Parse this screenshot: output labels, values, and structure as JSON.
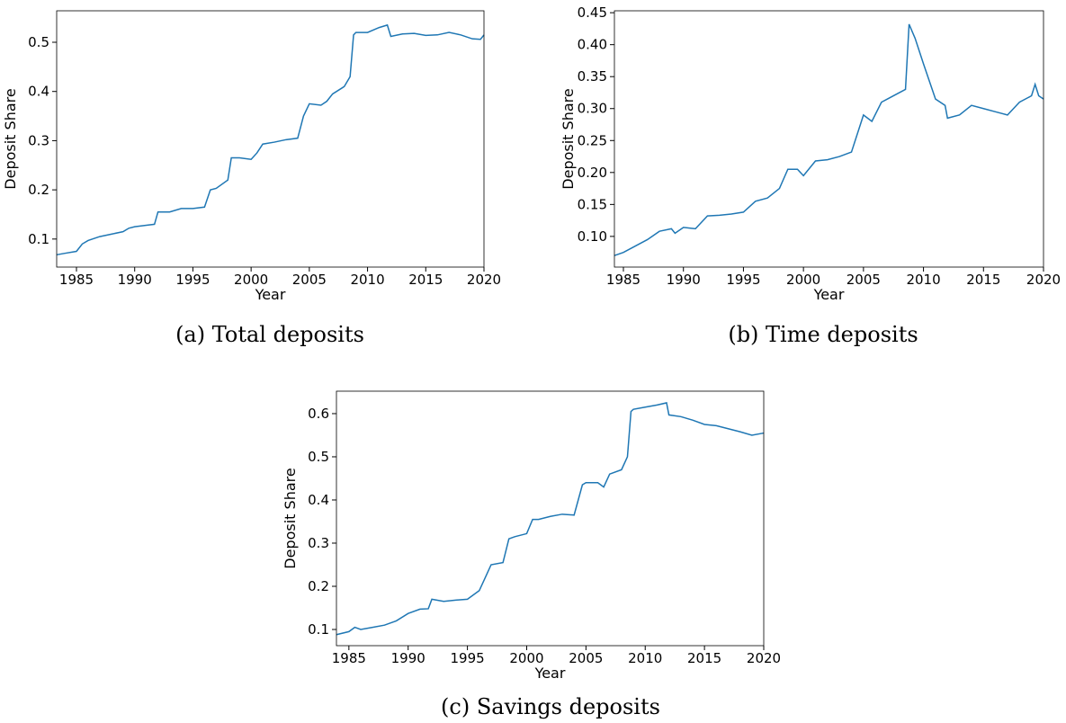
{
  "chart_data": [
    {
      "type": "line",
      "caption": "(a) Total deposits",
      "xlabel": "Year",
      "ylabel": "Deposit Share",
      "color": "#1f77b4",
      "xlim": [
        1983.3,
        2020
      ],
      "ylim": [
        0.043,
        0.564
      ],
      "xticks": [
        1985,
        1990,
        1995,
        2000,
        2005,
        2010,
        2015,
        2020
      ],
      "yticks": [
        0.1,
        0.2,
        0.3,
        0.4,
        0.5
      ],
      "x": [
        1983.3,
        1984,
        1985,
        1985.5,
        1986,
        1987,
        1988,
        1989,
        1989.5,
        1990,
        1991,
        1991.7,
        1992,
        1993,
        1994,
        1995,
        1996,
        1996.5,
        1997,
        1998,
        1998.3,
        1999,
        2000,
        2000.5,
        2001,
        2002,
        2003,
        2004,
        2004.5,
        2005,
        2006,
        2006.5,
        2007,
        2008,
        2008.5,
        2008.8,
        2009,
        2010,
        2011,
        2011.7,
        2012,
        2013,
        2014,
        2015,
        2016,
        2017,
        2018,
        2019,
        2019.7,
        2020
      ],
      "values": [
        0.068,
        0.071,
        0.075,
        0.09,
        0.097,
        0.105,
        0.11,
        0.115,
        0.122,
        0.125,
        0.128,
        0.13,
        0.155,
        0.155,
        0.162,
        0.162,
        0.165,
        0.2,
        0.203,
        0.22,
        0.265,
        0.265,
        0.262,
        0.275,
        0.293,
        0.297,
        0.302,
        0.305,
        0.35,
        0.375,
        0.372,
        0.38,
        0.395,
        0.41,
        0.43,
        0.515,
        0.52,
        0.52,
        0.53,
        0.535,
        0.512,
        0.517,
        0.518,
        0.514,
        0.515,
        0.52,
        0.515,
        0.507,
        0.506,
        0.515
      ]
    },
    {
      "type": "line",
      "caption": "(b) Time deposits",
      "xlabel": "Year",
      "ylabel": "Deposit Share",
      "color": "#1f77b4",
      "xlim": [
        1984.25,
        2020
      ],
      "ylim": [
        0.052,
        0.453
      ],
      "xticks": [
        1985,
        1990,
        1995,
        2000,
        2005,
        2010,
        2015,
        2020
      ],
      "yticks": [
        {
          "value": 0.1,
          "label": "0.10"
        },
        0.15,
        {
          "value": 0.2,
          "label": "0.20"
        },
        0.25,
        {
          "value": 0.3,
          "label": "0.30"
        },
        0.35,
        {
          "value": 0.4,
          "label": "0.40"
        },
        0.45
      ],
      "x": [
        1984.25,
        1985,
        1986,
        1987,
        1988,
        1989,
        1989.3,
        1990,
        1991,
        1992,
        1993,
        1994,
        1995,
        1996,
        1997,
        1998,
        1998.7,
        1999.5,
        2000,
        2001,
        2002,
        2003,
        2004,
        2005,
        2005.7,
        2006.5,
        2007,
        2008,
        2008.5,
        2008.8,
        2009.3,
        2010,
        2011,
        2011.8,
        2012,
        2013,
        2014,
        2015,
        2016,
        2017,
        2018,
        2019,
        2019.3,
        2019.6,
        2020
      ],
      "values": [
        0.07,
        0.075,
        0.085,
        0.095,
        0.108,
        0.112,
        0.105,
        0.114,
        0.112,
        0.132,
        0.133,
        0.135,
        0.138,
        0.155,
        0.16,
        0.175,
        0.205,
        0.205,
        0.195,
        0.218,
        0.22,
        0.225,
        0.232,
        0.29,
        0.28,
        0.31,
        0.315,
        0.325,
        0.33,
        0.432,
        0.41,
        0.37,
        0.315,
        0.305,
        0.285,
        0.29,
        0.305,
        0.3,
        0.295,
        0.29,
        0.31,
        0.32,
        0.338,
        0.32,
        0.315
      ]
    },
    {
      "type": "line",
      "caption": "(c) Savings deposits",
      "xlabel": "Year",
      "ylabel": "Deposit Share",
      "color": "#1f77b4",
      "xlim": [
        1983.95,
        2020
      ],
      "ylim": [
        0.0625,
        0.652
      ],
      "xticks": [
        1985,
        1990,
        1995,
        2000,
        2005,
        2010,
        2015,
        2020
      ],
      "yticks": [
        0.1,
        0.2,
        0.3,
        0.4,
        0.5,
        0.6
      ],
      "x": [
        1983.95,
        1985,
        1985.5,
        1986,
        1987,
        1988,
        1989,
        1990,
        1991,
        1991.7,
        1992,
        1993,
        1994,
        1995,
        1996,
        1996.5,
        1997,
        1998,
        1998.5,
        1999,
        2000,
        2000.5,
        2001,
        2002,
        2003,
        2004,
        2004.7,
        2005,
        2006,
        2006.5,
        2007,
        2008,
        2008.5,
        2008.8,
        2009,
        2010,
        2011,
        2011.8,
        2012,
        2013,
        2014,
        2015,
        2016,
        2017,
        2018,
        2019,
        2020
      ],
      "values": [
        0.088,
        0.095,
        0.105,
        0.1,
        0.105,
        0.11,
        0.12,
        0.137,
        0.147,
        0.148,
        0.17,
        0.165,
        0.168,
        0.17,
        0.19,
        0.22,
        0.25,
        0.255,
        0.31,
        0.315,
        0.322,
        0.355,
        0.355,
        0.362,
        0.367,
        0.365,
        0.435,
        0.44,
        0.44,
        0.43,
        0.46,
        0.47,
        0.5,
        0.605,
        0.61,
        0.615,
        0.62,
        0.625,
        0.597,
        0.593,
        0.585,
        0.575,
        0.572,
        0.565,
        0.558,
        0.55,
        0.555
      ]
    }
  ]
}
